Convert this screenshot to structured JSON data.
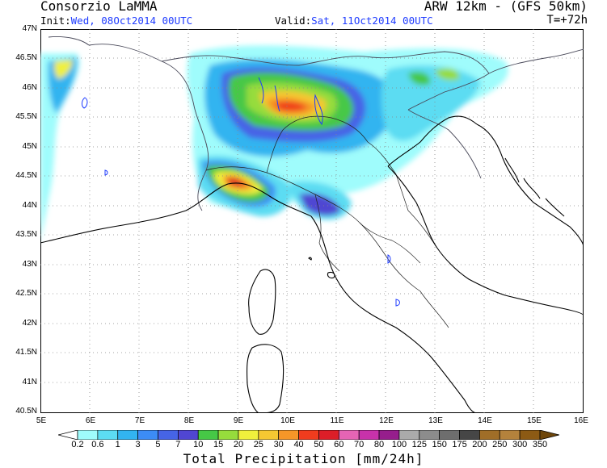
{
  "header": {
    "title_left": "Consorzio LaMMA",
    "title_right": "ARW 12km - (GFS 50km)",
    "init_prefix": "Init:",
    "init_value": "Wed, 08Oct2014 00UTC",
    "valid_prefix": "Valid:",
    "valid_value": "Sat, 11Oct2014 00UTC",
    "lead_time": "T=+72h"
  },
  "map": {
    "lat_labels": [
      "47N",
      "46.5N",
      "46N",
      "45.5N",
      "45N",
      "44.5N",
      "44N",
      "43.5N",
      "43N",
      "42.5N",
      "42N",
      "41.5N",
      "41N",
      "40.5N"
    ],
    "lon_labels": [
      "5E",
      "6E",
      "7E",
      "8E",
      "9E",
      "10E",
      "11E",
      "12E",
      "13E",
      "14E",
      "15E",
      "16E"
    ],
    "lat_range": [
      40.5,
      47.0
    ],
    "lon_range": [
      5,
      16
    ],
    "gridlines": "dotted",
    "coastline_color": "#000000",
    "lake_color": "#1f3cff",
    "border_color": "#7a7a8c"
  },
  "colorbar": {
    "title": "Total Precipitation [mm/24h]",
    "levels": [
      "0.2",
      "0.6",
      "1",
      "3",
      "5",
      "7",
      "10",
      "15",
      "20",
      "25",
      "30",
      "40",
      "50",
      "60",
      "70",
      "80",
      "100",
      "125",
      "150",
      "175",
      "200",
      "250",
      "300",
      "350"
    ],
    "colors": [
      "#ffffff",
      "#9ffcfc",
      "#5cdcf2",
      "#32b4f0",
      "#3c8cf5",
      "#4664e6",
      "#5046d2",
      "#46c846",
      "#96dc3c",
      "#f0f03c",
      "#f5c832",
      "#f59628",
      "#f03c1e",
      "#dc1e28",
      "#e664b4",
      "#c832aa",
      "#961e8c",
      "#aaaaaa",
      "#8c8c8c",
      "#6e6e6e",
      "#464646",
      "#a06e28",
      "#b4823c",
      "#8c5a14",
      "#6e460a"
    ]
  }
}
